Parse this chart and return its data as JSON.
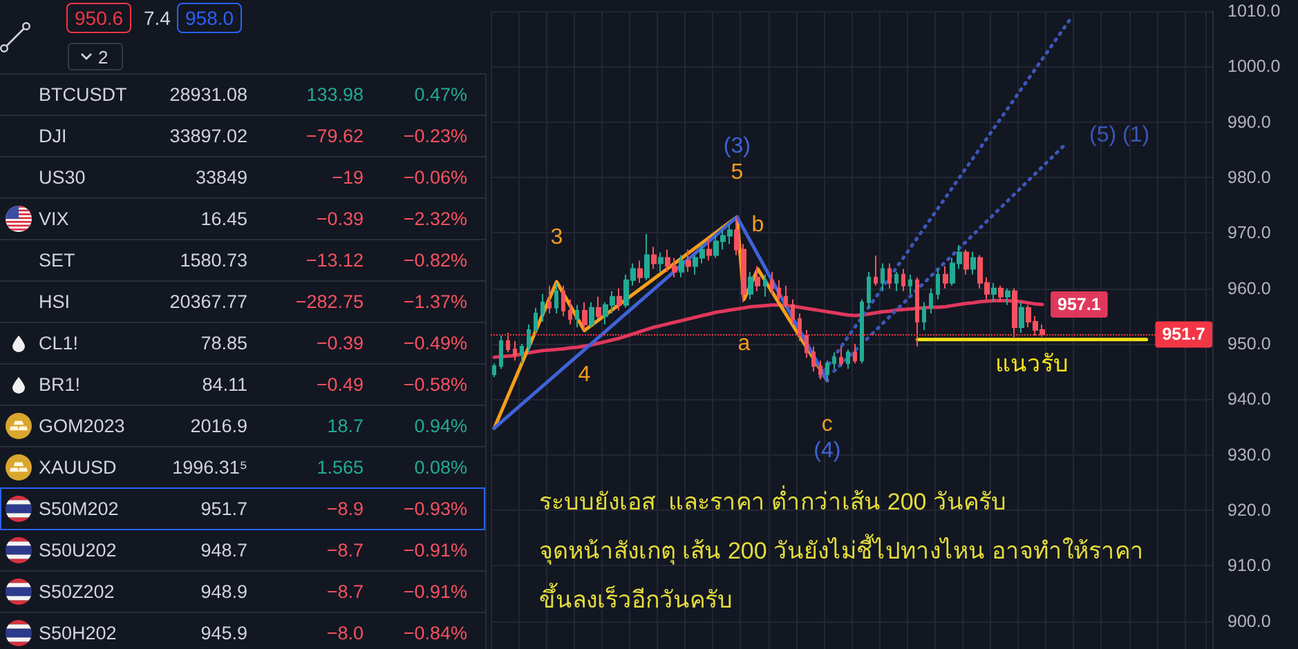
{
  "chart_data": [
    {
      "type": "other",
      "categories": [
        "BTCUSDT",
        "DJI",
        "US30",
        "VIX",
        "SET",
        "HSI",
        "CL1!",
        "BR1!",
        "GOM2023",
        "XAUUSD",
        "S50M202",
        "S50U202",
        "S50Z202",
        "S50H202"
      ],
      "series": [
        {
          "values": [
            28931.08,
            33897.02,
            33849,
            16.45,
            1580.73,
            20367.77,
            78.85,
            84.11,
            2016.9,
            1996.315,
            951.7,
            948.7,
            948.9,
            945.9
          ],
          "value_labels": [
            "28931.08",
            "33897.02",
            "33849",
            "16.45",
            "1580.73",
            "20367.77",
            "78.85",
            "84.11",
            "2016.9",
            "1996.31⁵",
            "951.7",
            "948.7",
            "948.9",
            "945.9"
          ]
        },
        {
          "values": [
            133.98,
            -79.62,
            -19,
            -0.39,
            -13.12,
            -282.75,
            -0.39,
            -0.49,
            18.7,
            1.565,
            -8.9,
            -8.7,
            -8.7,
            -8.0
          ],
          "value_labels": [
            "133.98",
            "−79.62",
            "−19",
            "−0.39",
            "−13.12",
            "−282.75",
            "−0.39",
            "−0.49",
            "18.7",
            "1.565",
            "−8.9",
            "−8.7",
            "−8.7",
            "−8.0"
          ]
        },
        {
          "values": [
            0.47,
            -0.23,
            -0.06,
            -2.32,
            -0.82,
            -1.37,
            -0.49,
            -0.58,
            0.94,
            0.08,
            -0.93,
            -0.91,
            -0.91,
            -0.84
          ],
          "value_labels": [
            "0.47%",
            "−0.23%",
            "−0.06%",
            "−2.32%",
            "−0.82%",
            "−1.37%",
            "−0.49%",
            "−0.58%",
            "0.94%",
            "0.08%",
            "−0.93%",
            "−0.91%",
            "−0.91%",
            "−0.84%"
          ]
        }
      ],
      "annotations": [
        "950.6",
        "7.4",
        "958.0",
        "2"
      ]
    },
    {
      "type": "candlestick",
      "categories": [
        null,
        null,
        null,
        null,
        null,
        null,
        null,
        null,
        null,
        null,
        null,
        null,
        null,
        null,
        null,
        null,
        null,
        null,
        null,
        null,
        null,
        null,
        null,
        null,
        null,
        null,
        null,
        null,
        null,
        null,
        null,
        null,
        null,
        null,
        null,
        null,
        null,
        null,
        null,
        null,
        null,
        null,
        null,
        null,
        null,
        null,
        null,
        null,
        null,
        null,
        null,
        null,
        null,
        null,
        null,
        null,
        null,
        null,
        null,
        null,
        null,
        null,
        null,
        null,
        null,
        null,
        null,
        null,
        null,
        null,
        null,
        null,
        null,
        null,
        null,
        null,
        null,
        null,
        null,
        null,
        null,
        null,
        null,
        null,
        null,
        null,
        null,
        null,
        null,
        null,
        null,
        null,
        null,
        null,
        null,
        null,
        null,
        null,
        null,
        null,
        null,
        null,
        null,
        null
      ],
      "ohlc": [
        [
          944.5,
          946.5,
          944,
          946
        ],
        [
          946,
          951.5,
          945.5,
          950.5
        ],
        [
          950.5,
          952,
          948.5,
          949
        ],
        [
          949,
          950.5,
          947,
          948
        ],
        [
          948,
          950,
          946.5,
          949.5
        ],
        [
          949.5,
          953.5,
          948.5,
          952.5
        ],
        [
          952.5,
          956.5,
          951.5,
          955.5
        ],
        [
          955.5,
          959,
          954,
          957.5
        ],
        [
          957.5,
          960.5,
          955.5,
          956.5
        ],
        [
          956.5,
          961,
          955.5,
          959.5
        ],
        [
          959.5,
          960.5,
          955,
          956
        ],
        [
          956,
          958,
          953.5,
          954.5
        ],
        [
          954.5,
          957,
          953,
          956
        ],
        [
          956,
          957.5,
          952.5,
          953.5
        ],
        [
          953.5,
          957.5,
          953,
          956.5
        ],
        [
          956.5,
          958.5,
          954.5,
          955
        ],
        [
          955,
          957.5,
          953.5,
          957
        ],
        [
          957,
          959.5,
          955.5,
          958.5
        ],
        [
          958.5,
          960,
          956,
          957
        ],
        [
          957,
          962.5,
          956.5,
          961.5
        ],
        [
          961.5,
          964.5,
          960.5,
          963.5
        ],
        [
          963.5,
          965,
          961,
          962
        ],
        [
          962,
          969.8,
          961.5,
          966
        ],
        [
          966,
          967.5,
          963.5,
          964.5
        ],
        [
          964.5,
          966.5,
          963,
          965.5
        ],
        [
          965.5,
          967,
          963,
          964
        ],
        [
          964,
          965.5,
          962,
          963
        ],
        [
          963,
          966,
          962,
          965
        ],
        [
          965,
          967,
          963,
          964
        ],
        [
          964,
          966,
          962.5,
          965.5
        ],
        [
          965.5,
          968,
          964.5,
          967
        ],
        [
          967,
          969,
          965,
          966
        ],
        [
          966,
          969.5,
          965.5,
          968.5
        ],
        [
          968.5,
          970.5,
          967,
          969.5
        ],
        [
          969.5,
          971.5,
          968,
          970.5
        ],
        [
          970.5,
          972.9,
          966,
          967
        ],
        [
          967,
          968,
          957.5,
          959
        ],
        [
          959,
          963,
          958,
          962
        ],
        [
          962,
          964,
          959.5,
          960.5
        ],
        [
          960.5,
          962.5,
          958.5,
          961.5
        ],
        [
          961.5,
          963,
          959,
          960
        ],
        [
          960,
          961.5,
          957.5,
          958.5
        ],
        [
          958.5,
          960.5,
          956.5,
          957
        ],
        [
          957,
          958,
          953.5,
          954.5
        ],
        [
          954.5,
          955.5,
          950.5,
          951.5
        ],
        [
          951.5,
          952.5,
          947.5,
          948.5
        ],
        [
          948.5,
          949.5,
          945,
          946
        ],
        [
          946,
          947,
          943.6,
          944.5
        ],
        [
          944.5,
          947,
          943.4,
          946.5
        ],
        [
          946.5,
          948.5,
          945.5,
          947.5
        ],
        [
          947.5,
          949.5,
          946,
          946.5
        ],
        [
          946.5,
          949,
          945.5,
          948.5
        ],
        [
          948.5,
          950,
          946.5,
          947
        ],
        [
          947,
          958,
          946.5,
          957.5
        ],
        [
          957.5,
          963,
          956.5,
          962
        ],
        [
          962,
          965.9,
          960.5,
          961
        ],
        [
          961,
          964.5,
          959.5,
          963.5
        ],
        [
          963.5,
          964.5,
          960,
          961
        ],
        [
          961,
          963,
          959.5,
          962.5
        ],
        [
          962.5,
          963.5,
          959.5,
          960.5
        ],
        [
          960.5,
          962.5,
          959,
          961.5
        ],
        [
          961.5,
          962,
          949.5,
          954
        ],
        [
          954,
          957.5,
          952.5,
          956.5
        ],
        [
          956.5,
          960,
          955.5,
          959
        ],
        [
          959,
          963.5,
          958,
          962.5
        ],
        [
          962.5,
          964,
          960,
          961
        ],
        [
          961,
          965.5,
          960.5,
          964.5
        ],
        [
          964.5,
          967.8,
          963.5,
          966.5
        ],
        [
          966.5,
          967,
          962.5,
          963.5
        ],
        [
          963.5,
          966.6,
          962.5,
          965.5
        ],
        [
          965.5,
          966,
          960,
          961
        ],
        [
          961,
          962,
          958,
          959
        ],
        [
          959,
          961,
          957.5,
          960
        ],
        [
          960,
          960.5,
          957.5,
          958.5
        ],
        [
          958.5,
          960,
          957,
          959.5
        ],
        [
          959.5,
          960,
          951.2,
          953
        ],
        [
          953,
          957.5,
          952,
          956.5
        ],
        [
          956.5,
          957,
          953,
          954
        ],
        [
          954,
          955,
          951.5,
          952.5
        ],
        [
          952.5,
          953.5,
          951.3,
          951.7
        ],
        null,
        null,
        null,
        null,
        null,
        null,
        null,
        null,
        null,
        null,
        null,
        null,
        null,
        null,
        null,
        null,
        null,
        null,
        null,
        null,
        null,
        null,
        null,
        null
      ],
      "series": [
        {
          "type": "line",
          "color": "#e0385c",
          "values": [
            947.6,
            947.7,
            947.8,
            947.9,
            948.2,
            948.4,
            948.6,
            948.8,
            948.9,
            949.0,
            949.1,
            949.3,
            949.4,
            949.6,
            949.8,
            950.1,
            950.4,
            950.7,
            951.0,
            951.4,
            951.8,
            952.2,
            952.6,
            953.0,
            953.3,
            953.6,
            953.9,
            954.2,
            954.5,
            954.8,
            955.1,
            955.4,
            955.7,
            955.9,
            956.1,
            956.3,
            956.5,
            956.7,
            956.8,
            956.9,
            957.0,
            957.0,
            956.9,
            956.8,
            956.6,
            956.4,
            956.2,
            956.0,
            955.8,
            955.6,
            955.4,
            955.2,
            955.1,
            955.2,
            955.4,
            955.6,
            955.8,
            955.9,
            956.1,
            956.2,
            956.3,
            956.4,
            956.5,
            956.6,
            956.6,
            956.7,
            956.9,
            957.1,
            957.3,
            957.4,
            957.6,
            957.7,
            957.8,
            957.8,
            957.8,
            957.7,
            957.6,
            957.4,
            957.2,
            957.1,
            null,
            null,
            null,
            null,
            null,
            null,
            null,
            null,
            null,
            null,
            null,
            null,
            null,
            null,
            null,
            null,
            null,
            null,
            null,
            null,
            null,
            null,
            null,
            null
          ],
          "value_labels": [
            null,
            null,
            null,
            null,
            null,
            null,
            null,
            null,
            null,
            null,
            null,
            null,
            null,
            null,
            null,
            null,
            null,
            null,
            null,
            null,
            null,
            null,
            null,
            null,
            null,
            null,
            null,
            null,
            null,
            null,
            null,
            null,
            null,
            null,
            null,
            null,
            null,
            null,
            null,
            null,
            null,
            null,
            null,
            null,
            null,
            null,
            null,
            null,
            null,
            null,
            null,
            null,
            null,
            null,
            null,
            null,
            null,
            null,
            null,
            null,
            null,
            null,
            null,
            null,
            null,
            null,
            null,
            null,
            null,
            null,
            null,
            null,
            null,
            null,
            null,
            null,
            null,
            null,
            null,
            "957.1",
            null,
            null,
            null,
            null,
            null,
            null,
            null,
            null,
            null,
            null,
            null,
            null,
            null,
            null,
            null,
            null,
            null,
            null,
            null,
            null,
            null,
            null,
            null,
            null
          ]
        },
        {
          "type": "line",
          "color": "#f59e1b",
          "values": [
            934.8,
            null,
            null,
            null,
            null,
            null,
            null,
            null,
            null,
            961.2,
            null,
            null,
            null,
            952.4,
            null,
            null,
            null,
            null,
            null,
            null,
            null,
            null,
            null,
            null,
            null,
            null,
            null,
            null,
            null,
            null,
            null,
            null,
            null,
            null,
            null,
            972.9,
            958,
            null,
            963.5,
            null,
            null,
            null,
            null,
            null,
            null,
            null,
            null,
            null,
            943.4,
            null,
            null,
            null,
            null,
            null,
            null,
            null,
            null,
            null,
            null,
            null,
            null,
            null,
            null,
            null,
            null,
            null,
            null,
            null,
            null,
            null,
            null,
            null,
            null,
            null,
            null,
            null,
            null,
            null,
            null,
            null,
            null,
            null,
            null,
            null,
            null,
            null,
            null,
            null,
            null,
            null,
            null,
            null,
            null,
            null,
            null,
            null,
            null,
            null,
            null,
            null,
            null,
            null,
            null,
            null
          ]
        },
        {
          "type": "line",
          "color": "#3f63d8",
          "values": [
            934.8,
            null,
            null,
            null,
            null,
            null,
            null,
            null,
            null,
            null,
            null,
            null,
            null,
            null,
            null,
            null,
            null,
            null,
            null,
            null,
            null,
            null,
            null,
            null,
            null,
            null,
            null,
            null,
            null,
            null,
            null,
            null,
            null,
            null,
            null,
            972.9,
            null,
            null,
            null,
            null,
            null,
            null,
            null,
            null,
            null,
            null,
            null,
            null,
            943.4,
            null,
            null,
            null,
            null,
            null,
            null,
            null,
            null,
            null,
            null,
            null,
            null,
            null,
            null,
            null,
            null,
            null,
            null,
            null,
            null,
            null,
            null,
            null,
            null,
            null,
            null,
            null,
            null,
            null,
            null,
            null,
            null,
            null,
            null,
            null,
            null,
            null,
            null,
            null,
            null,
            null,
            null,
            null,
            null,
            null,
            null,
            null,
            null,
            null,
            null,
            null,
            null,
            null,
            null,
            null
          ]
        },
        {
          "type": "line",
          "color": "#3a57b8",
          "line_style": "dotted",
          "values": [
            null,
            null,
            null,
            null,
            null,
            null,
            null,
            null,
            null,
            null,
            null,
            null,
            null,
            null,
            null,
            null,
            null,
            null,
            null,
            null,
            null,
            null,
            null,
            null,
            null,
            null,
            null,
            null,
            null,
            null,
            null,
            null,
            null,
            null,
            null,
            null,
            null,
            null,
            null,
            null,
            null,
            null,
            null,
            null,
            null,
            null,
            null,
            944.1,
            null,
            null,
            null,
            null,
            null,
            null,
            null,
            null,
            null,
            null,
            null,
            null,
            null,
            null,
            null,
            null,
            null,
            null,
            null,
            null,
            null,
            null,
            null,
            null,
            null,
            null,
            null,
            null,
            null,
            null,
            null,
            null,
            null,
            null,
            null,
            1008.5,
            null,
            null,
            null,
            null,
            null,
            null,
            null,
            null,
            null,
            null,
            null,
            null,
            null,
            null,
            null,
            null,
            null,
            null,
            null,
            null
          ]
        },
        {
          "type": "line",
          "color": "#3a57b8",
          "line_style": "dotted",
          "values": [
            null,
            null,
            null,
            null,
            null,
            null,
            null,
            null,
            null,
            null,
            null,
            null,
            null,
            null,
            null,
            null,
            null,
            null,
            null,
            null,
            null,
            null,
            null,
            null,
            null,
            null,
            null,
            null,
            null,
            null,
            null,
            null,
            null,
            null,
            null,
            null,
            null,
            null,
            null,
            null,
            null,
            null,
            null,
            null,
            null,
            null,
            null,
            null,
            null,
            945.1,
            null,
            null,
            null,
            null,
            null,
            null,
            null,
            null,
            null,
            null,
            null,
            null,
            null,
            null,
            null,
            null,
            null,
            null,
            null,
            null,
            null,
            null,
            null,
            null,
            null,
            null,
            null,
            null,
            null,
            null,
            null,
            null,
            985.6,
            null,
            null,
            null,
            null,
            null,
            null,
            null,
            null,
            null,
            null,
            null,
            null,
            null,
            null,
            null,
            null,
            null,
            null,
            null,
            null,
            null
          ]
        },
        {
          "type": "line",
          "name": "แนวรับ",
          "color": "#f2e318",
          "values": [
            null,
            null,
            null,
            null,
            null,
            null,
            null,
            null,
            null,
            null,
            null,
            null,
            null,
            null,
            null,
            null,
            null,
            null,
            null,
            null,
            null,
            null,
            null,
            null,
            null,
            null,
            null,
            null,
            null,
            null,
            null,
            null,
            null,
            null,
            null,
            null,
            null,
            null,
            null,
            null,
            null,
            null,
            null,
            null,
            null,
            null,
            null,
            null,
            null,
            null,
            null,
            null,
            null,
            null,
            null,
            null,
            null,
            null,
            null,
            null,
            null,
            950.8,
            null,
            null,
            null,
            null,
            null,
            null,
            null,
            null,
            null,
            null,
            null,
            null,
            null,
            null,
            null,
            null,
            null,
            null,
            null,
            null,
            null,
            null,
            null,
            null,
            null,
            null,
            null,
            null,
            null,
            null,
            null,
            null,
            950.8,
            null,
            null,
            null,
            null,
            null,
            null,
            null,
            null,
            null
          ]
        }
      ],
      "ylim": [
        895,
        1010
      ],
      "yticks": [
        {
          "value": 900,
          "label": "900.0"
        },
        {
          "value": 910,
          "label": "910.0"
        },
        {
          "value": 920,
          "label": "920.0"
        },
        {
          "value": 930,
          "label": "930.0"
        },
        {
          "value": 940,
          "label": "940.0"
        },
        {
          "value": 950,
          "label": "950.0"
        },
        {
          "value": 960,
          "label": "960.0"
        },
        {
          "value": 970,
          "label": "970.0"
        },
        {
          "value": 980,
          "label": "980.0"
        },
        {
          "value": 990,
          "label": "990.0"
        },
        {
          "value": 1000,
          "label": "1000.0"
        },
        {
          "value": 1010,
          "label": "1010.0"
        }
      ],
      "ref_lines": [
        {
          "axis": "y",
          "value": 951.7,
          "label": "951.7",
          "color": "#f23645",
          "line_style": "dotted"
        }
      ],
      "grid": true,
      "tick_labels": "y",
      "annotations": [
        {
          "text": "3",
          "y": 961.2
        },
        {
          "text": "4",
          "y": 952.4
        },
        {
          "text": "5",
          "y": 972.9
        },
        {
          "text": "(3)",
          "y": 972.9
        },
        {
          "text": "a",
          "y": 958
        },
        {
          "text": "b",
          "y": 963.5
        },
        {
          "text": "c",
          "y": 943.4
        },
        {
          "text": "(4)",
          "y": 943.4
        },
        "(5) (1)",
        "ระบบยังเอส  และราคา ต่ำกว่าเส้น 200 วันครับ",
        "จุดหน้าสังเกตุ เส้น 200 วันยังไม่ชี้ไปทางไหน อาจทำให้ราคา",
        "ขึ้นลงเร็วอีกวันครับ"
      ]
    }
  ]
}
